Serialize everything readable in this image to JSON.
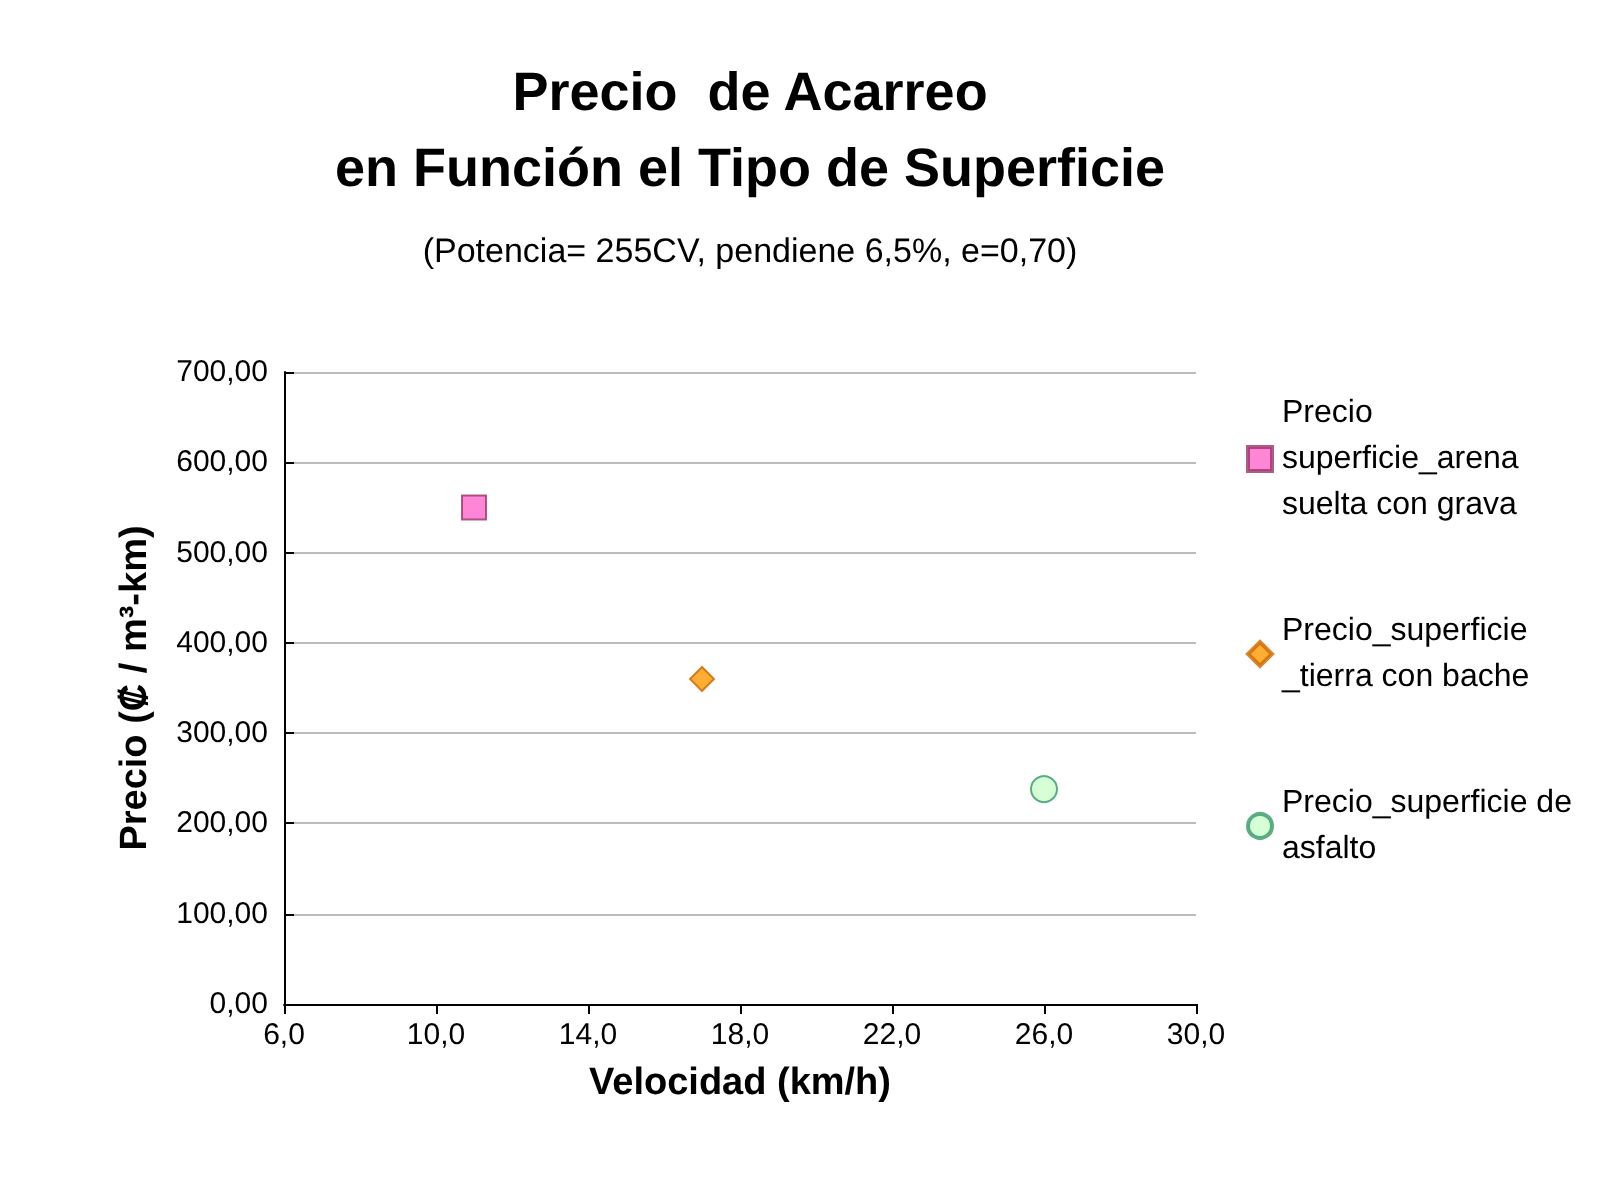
{
  "chart_data": {
    "type": "scatter",
    "title": "Precio  de Acarreo\nen Función el Tipo de Superficie",
    "subtitle": "(Potencia= 255CV, pendiene 6,5%, e=0,70)",
    "xlabel": "Velocidad (km/h)",
    "ylabel": "Precio (₡ / m³-km)",
    "series": [
      {
        "name": "Precio superficie_arena suelta con grava",
        "color": "#ff66cc",
        "marker": "square",
        "x": [
          11.0
        ],
        "values": [
          550
        ]
      },
      {
        "name": "Precio_superficie _tierra con bache",
        "color": "#ff9900",
        "marker": "diamond",
        "x": [
          17.0
        ],
        "values": [
          360
        ]
      },
      {
        "name": "Precio_superficie de asfalto",
        "color": "#ccffcc",
        "marker": "circle",
        "x": [
          26.0
        ],
        "values": [
          238
        ]
      }
    ],
    "xlim": [
      6,
      30
    ],
    "xticks": [
      {
        "value": 6,
        "label": "6,0"
      },
      {
        "value": 10,
        "label": "10,0"
      },
      {
        "value": 14,
        "label": "14,0"
      },
      {
        "value": 18,
        "label": "18,0"
      },
      {
        "value": 22,
        "label": "22,0"
      },
      {
        "value": 26,
        "label": "26,0"
      },
      {
        "value": 30,
        "label": "30,0"
      }
    ],
    "ylim": [
      0,
      700
    ],
    "yticks": [
      {
        "value": 0,
        "label": "0,00"
      },
      {
        "value": 100,
        "label": "100,00"
      },
      {
        "value": 200,
        "label": "200,00"
      },
      {
        "value": 300,
        "label": "300,00"
      },
      {
        "value": 400,
        "label": "400,00"
      },
      {
        "value": 500,
        "label": "500,00"
      },
      {
        "value": 600,
        "label": "600,00"
      },
      {
        "value": 700,
        "label": "700,00"
      }
    ],
    "grid": "y",
    "legend": "right"
  }
}
